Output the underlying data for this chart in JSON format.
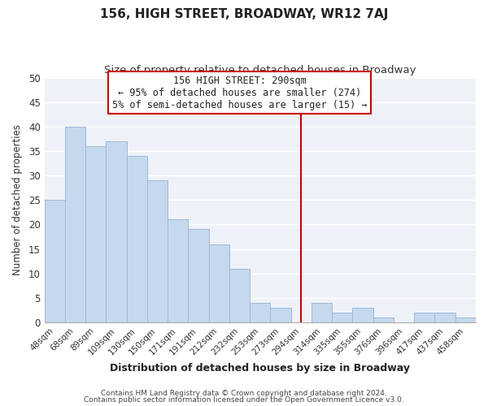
{
  "title": "156, HIGH STREET, BROADWAY, WR12 7AJ",
  "subtitle": "Size of property relative to detached houses in Broadway",
  "xlabel": "Distribution of detached houses by size in Broadway",
  "ylabel": "Number of detached properties",
  "footnote1": "Contains HM Land Registry data © Crown copyright and database right 2024.",
  "footnote2": "Contains public sector information licensed under the Open Government Licence v3.0.",
  "categories": [
    "48sqm",
    "68sqm",
    "89sqm",
    "109sqm",
    "130sqm",
    "150sqm",
    "171sqm",
    "191sqm",
    "212sqm",
    "232sqm",
    "253sqm",
    "273sqm",
    "294sqm",
    "314sqm",
    "335sqm",
    "355sqm",
    "376sqm",
    "396sqm",
    "417sqm",
    "437sqm",
    "458sqm"
  ],
  "values": [
    25,
    40,
    36,
    37,
    34,
    29,
    21,
    19,
    16,
    11,
    4,
    3,
    0,
    4,
    2,
    3,
    1,
    0,
    2,
    2,
    1
  ],
  "bar_color": "#c5d8ed",
  "bar_edge_color": "#a0b8d8",
  "grid_color": "#d0d8e8",
  "vline_color": "#cc0000",
  "annotation_title": "156 HIGH STREET: 290sqm",
  "annotation_line1": "← 95% of detached houses are smaller (274)",
  "annotation_line2": "5% of semi-detached houses are larger (15) →",
  "annotation_box_color": "#ffffff",
  "annotation_box_edge": "#cc0000",
  "ylim": [
    0,
    50
  ],
  "yticks": [
    0,
    5,
    10,
    15,
    20,
    25,
    30,
    35,
    40,
    45,
    50
  ],
  "bg_color": "#eef2f8"
}
